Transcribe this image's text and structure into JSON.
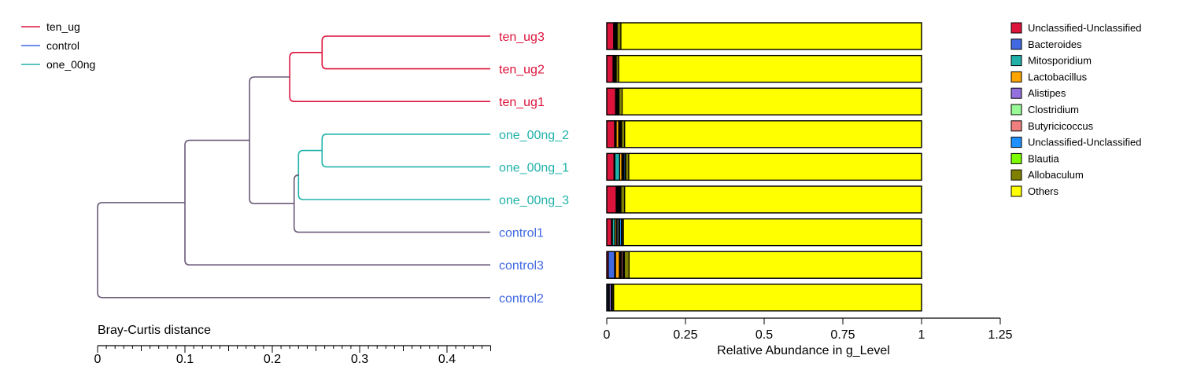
{
  "chart_data": [
    {
      "type": "dendrogram",
      "xlabel": "Bray-Curtis distance",
      "xlim": [
        0,
        0.45
      ],
      "xticks": [
        "0",
        "0.1",
        "0.2",
        "0.3",
        "0.4"
      ],
      "xtick_values": [
        0,
        0.1,
        0.2,
        0.3,
        0.4
      ],
      "legend": [
        {
          "name": "ten_ug",
          "color": "#dc143c"
        },
        {
          "name": "control",
          "color": "#4169e1"
        },
        {
          "name": "one_00ng",
          "color": "#20b2aa"
        }
      ],
      "leaves": [
        {
          "label": "ten_ug3",
          "group": "ten_ug"
        },
        {
          "label": "ten_ug2",
          "group": "ten_ug"
        },
        {
          "label": "ten_ug1",
          "group": "ten_ug"
        },
        {
          "label": "one_00ng_2",
          "group": "one_00ng"
        },
        {
          "label": "one_00ng_1",
          "group": "one_00ng"
        },
        {
          "label": "one_00ng_3",
          "group": "one_00ng"
        },
        {
          "label": "control1",
          "group": "control"
        },
        {
          "label": "control3",
          "group": "control"
        },
        {
          "label": "control2",
          "group": "control"
        }
      ],
      "merges": [
        {
          "a": "ten_ug3",
          "b": "ten_ug2",
          "height": 0.257,
          "id": "m1"
        },
        {
          "a": "m1",
          "b": "ten_ug1",
          "height": 0.22,
          "id": "m2"
        },
        {
          "a": "one_00ng_2",
          "b": "one_00ng_1",
          "height": 0.257,
          "id": "m3"
        },
        {
          "a": "m3",
          "b": "one_00ng_3",
          "height": 0.23,
          "id": "m4"
        },
        {
          "a": "m4",
          "b": "control1",
          "height": 0.225,
          "id": "m5"
        },
        {
          "a": "m2",
          "b": "m5",
          "height": 0.174,
          "id": "m6"
        },
        {
          "a": "m6",
          "b": "control3",
          "height": 0.1,
          "id": "m7"
        },
        {
          "a": "m7",
          "b": "control2",
          "height": 0.0,
          "id": "m8"
        }
      ],
      "mixed_branch_color": "#6b5b7b"
    },
    {
      "type": "stacked-bar",
      "orientation": "horizontal",
      "xlabel": "Relative Abundance in g_Level",
      "xlim": [
        0,
        1.25
      ],
      "xticks": [
        "0",
        "0.25",
        "0.5",
        "0.75",
        "1",
        "1.25"
      ],
      "xtick_values": [
        0,
        0.25,
        0.5,
        0.75,
        1,
        1.25
      ],
      "legend_position": "right",
      "categories": [
        "ten_ug3",
        "ten_ug2",
        "ten_ug1",
        "one_00ng_2",
        "one_00ng_1",
        "one_00ng_3",
        "control1",
        "control3",
        "control2"
      ],
      "series": [
        {
          "name": "Unclassified-Unclassified",
          "color": "#dc143c",
          "values": [
            0.022,
            0.02,
            0.028,
            0.025,
            0.023,
            0.03,
            0.015,
            0.005,
            0.002
          ]
        },
        {
          "name": "Bacteroides",
          "color": "#4169e1",
          "values": [
            0.002,
            0.002,
            0.002,
            0.002,
            0.003,
            0.002,
            0.003,
            0.02,
            0.004
          ]
        },
        {
          "name": "Mitosporidium",
          "color": "#20b2aa",
          "values": [
            0.002,
            0.002,
            0.002,
            0.003,
            0.015,
            0.003,
            0.008,
            0.003,
            0.001
          ]
        },
        {
          "name": "Lactobacillus",
          "color": "#ffa500",
          "values": [
            0.001,
            0.001,
            0.002,
            0.008,
            0.007,
            0.003,
            0.005,
            0.012,
            0.001
          ]
        },
        {
          "name": "Alistipes",
          "color": "#9370db",
          "values": [
            0.002,
            0.001,
            0.001,
            0.002,
            0.002,
            0.002,
            0.004,
            0.003,
            0.006
          ]
        },
        {
          "name": "Clostridium",
          "color": "#98fb98",
          "values": [
            0.001,
            0.001,
            0.001,
            0.002,
            0.002,
            0.001,
            0.004,
            0.003,
            0.001
          ]
        },
        {
          "name": "Butyricicoccus",
          "color": "#f08080",
          "values": [
            0.001,
            0.001,
            0.001,
            0.002,
            0.002,
            0.001,
            0.002,
            0.005,
            0.001
          ]
        },
        {
          "name": "Unclassified-Unclassified",
          "color": "#1e90ff",
          "values": [
            0.001,
            0.001,
            0.001,
            0.002,
            0.004,
            0.002,
            0.006,
            0.003,
            0.001
          ]
        },
        {
          "name": "Blautia",
          "color": "#7cfc00",
          "values": [
            0.001,
            0.001,
            0.001,
            0.001,
            0.002,
            0.001,
            0.002,
            0.002,
            0.001
          ]
        },
        {
          "name": "Allobaculum",
          "color": "#808000",
          "values": [
            0.012,
            0.008,
            0.01,
            0.01,
            0.01,
            0.012,
            0.004,
            0.015,
            0.004
          ]
        },
        {
          "name": "Others",
          "color": "#ffff00",
          "values": [
            0.955,
            0.962,
            0.951,
            0.943,
            0.93,
            0.943,
            0.947,
            0.929,
            0.978
          ]
        }
      ]
    }
  ]
}
